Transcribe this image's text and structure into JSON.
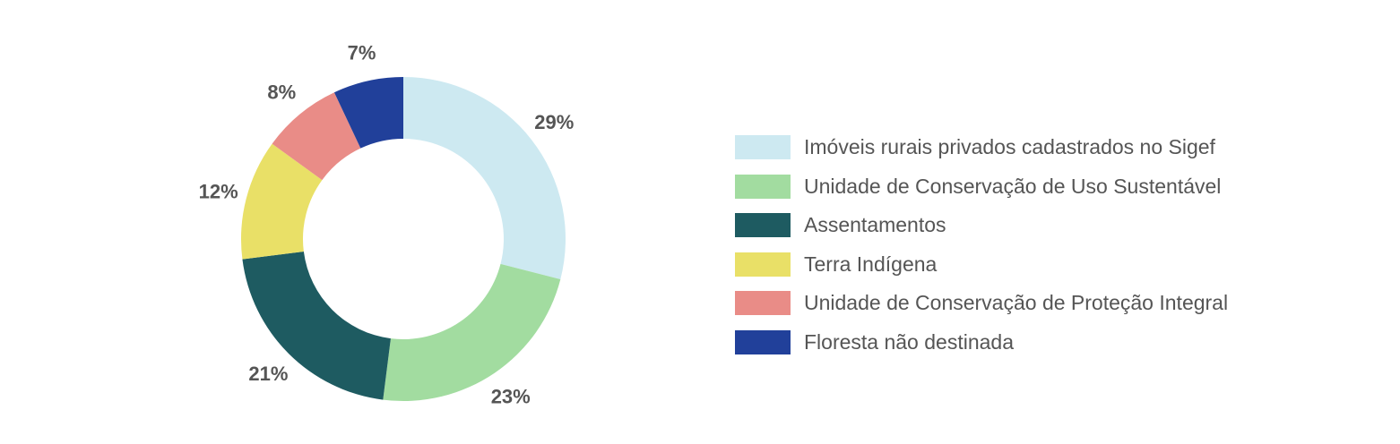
{
  "chart_data": {
    "type": "pie",
    "variant": "donut",
    "title": "",
    "legend_position": "right",
    "categories": [
      "Imóveis rurais privados cadastrados no Sigef",
      "Unidade de Conservação de Uso Sustentável",
      "Assentamentos",
      "Terra Indígena",
      "Unidade de Conservação de Proteção Integral",
      "Floresta não destinada"
    ],
    "values": [
      29,
      23,
      21,
      12,
      8,
      7
    ],
    "value_labels": [
      "29%",
      "23%",
      "21%",
      "12%",
      "8%",
      "7%"
    ],
    "colors": [
      "#cde9f1",
      "#a2dca0",
      "#1e5b61",
      "#e9e067",
      "#e98c87",
      "#21409a"
    ]
  }
}
